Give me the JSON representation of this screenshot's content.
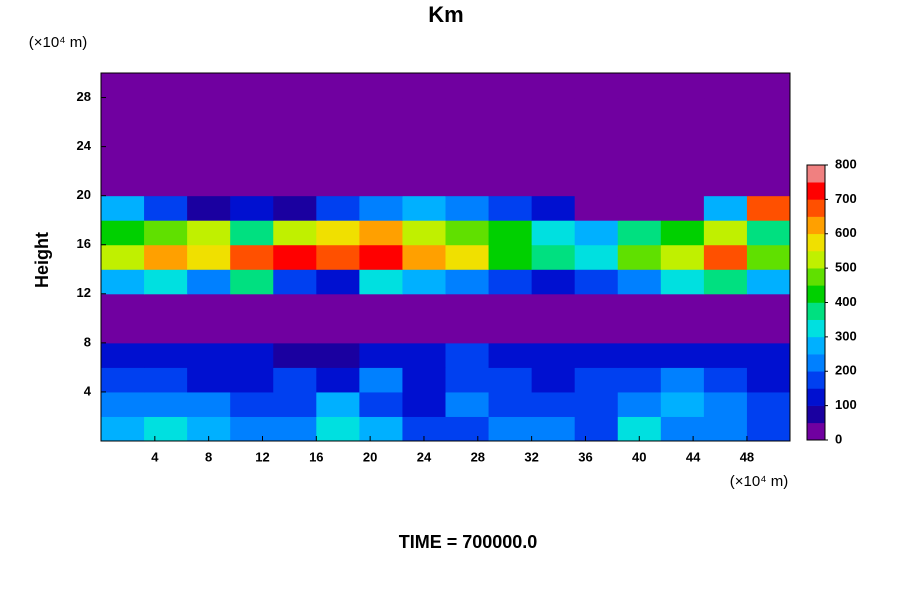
{
  "chart_data": {
    "type": "heatmap",
    "title": "Km",
    "ylabel": "Height",
    "xunit": "(×10⁴ m)",
    "yunit": "(×10⁴ m)",
    "caption": "TIME = 700000.0",
    "xlim": [
      0,
      51.2
    ],
    "ylim": [
      0,
      30
    ],
    "xticks": [
      4,
      8,
      12,
      16,
      20,
      24,
      28,
      32,
      36,
      40,
      44,
      48
    ],
    "yticks": [
      4,
      8,
      12,
      16,
      20,
      24,
      28
    ],
    "zlim": [
      0,
      800
    ],
    "zticks": [
      0,
      100,
      200,
      300,
      400,
      500,
      600,
      700,
      800
    ],
    "colors": [
      "#7000a0",
      "#1a00a0",
      "#0010d0",
      "#0040f0",
      "#0080ff",
      "#00b0ff",
      "#00e0e0",
      "#00e080",
      "#00d000",
      "#60e000",
      "#c0f000",
      "#f0e000",
      "#ffa000",
      "#ff5000",
      "#ff0000",
      "#f08080"
    ],
    "z": [
      [
        250,
        300,
        280,
        200,
        230,
        320,
        250,
        150,
        180,
        230,
        200,
        160,
        300,
        220,
        200,
        180
      ],
      [
        220,
        240,
        200,
        150,
        180,
        250,
        180,
        120,
        200,
        180,
        170,
        150,
        220,
        250,
        200,
        150
      ],
      [
        180,
        160,
        140,
        120,
        150,
        140,
        200,
        100,
        180,
        150,
        120,
        170,
        150,
        200,
        180,
        120
      ],
      [
        130,
        120,
        110,
        100,
        90,
        80,
        100,
        120,
        150,
        110,
        100,
        130,
        100,
        120,
        110,
        100
      ],
      [
        20,
        10,
        0,
        0,
        0,
        0,
        0,
        30,
        40,
        30,
        20,
        10,
        10,
        0,
        0,
        0
      ],
      [
        0,
        0,
        0,
        0,
        0,
        0,
        0,
        0,
        0,
        0,
        0,
        0,
        0,
        0,
        0,
        0
      ],
      [
        250,
        300,
        200,
        350,
        150,
        100,
        300,
        250,
        200,
        150,
        100,
        150,
        200,
        300,
        350,
        250
      ],
      [
        500,
        600,
        550,
        650,
        700,
        650,
        700,
        600,
        550,
        400,
        350,
        300,
        450,
        500,
        650,
        450
      ],
      [
        400,
        450,
        500,
        350,
        500,
        550,
        600,
        500,
        450,
        400,
        300,
        250,
        350,
        400,
        500,
        350
      ],
      [
        250,
        150,
        50,
        100,
        50,
        150,
        200,
        250,
        200,
        150,
        100,
        0,
        0,
        0,
        250,
        650
      ],
      [
        0,
        0,
        0,
        0,
        0,
        0,
        0,
        0,
        0,
        0,
        0,
        0,
        0,
        0,
        0,
        0
      ],
      [
        0,
        0,
        0,
        0,
        0,
        0,
        0,
        0,
        0,
        0,
        0,
        0,
        0,
        0,
        0,
        0
      ],
      [
        0,
        0,
        0,
        0,
        0,
        0,
        0,
        0,
        0,
        0,
        0,
        0,
        0,
        0,
        0,
        0
      ],
      [
        0,
        0,
        0,
        0,
        0,
        0,
        0,
        0,
        0,
        0,
        0,
        0,
        0,
        0,
        0,
        0
      ],
      [
        0,
        0,
        0,
        0,
        0,
        0,
        0,
        0,
        0,
        0,
        0,
        0,
        0,
        0,
        0,
        0
      ]
    ]
  }
}
